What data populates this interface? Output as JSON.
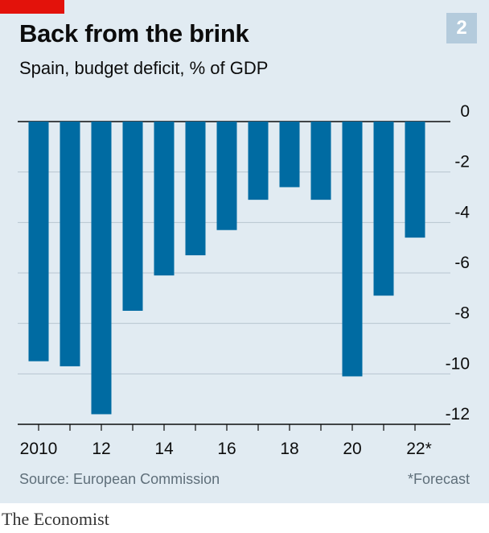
{
  "header": {
    "title": "Back from the brink",
    "subtitle": "Spain, budget deficit, % of GDP",
    "badge": "2"
  },
  "footer": {
    "source": "Source: European Commission",
    "footnote": "*Forecast",
    "brand": "The Economist"
  },
  "colors": {
    "bar": "#006ba2",
    "background": "#e1ebf2",
    "grid": "#b7c6d0",
    "accent": "#e3120b",
    "badge": "#b4cbdc"
  },
  "chart_data": {
    "type": "bar",
    "categories": [
      "2010",
      "2011",
      "2012",
      "2013",
      "2014",
      "2015",
      "2016",
      "2017",
      "2018",
      "2019",
      "2020",
      "2021",
      "2022"
    ],
    "values": [
      -9.5,
      -9.7,
      -11.6,
      -7.5,
      -6.1,
      -5.3,
      -4.3,
      -3.1,
      -2.6,
      -3.1,
      -10.1,
      -6.9,
      -4.6
    ],
    "xtick_labels": [
      "2010",
      "12",
      "14",
      "16",
      "18",
      "20",
      "22*"
    ],
    "xtick_indices": [
      0,
      2,
      4,
      6,
      8,
      10,
      12
    ],
    "yticks": [
      0,
      -2,
      -4,
      -6,
      -8,
      -10,
      -12
    ],
    "ytick_labels": [
      "0",
      "-2",
      "-4",
      "-6",
      "-8",
      "-10",
      "-12"
    ],
    "ylim": [
      -12,
      0
    ],
    "grid": true,
    "y_axis_side": "right"
  }
}
